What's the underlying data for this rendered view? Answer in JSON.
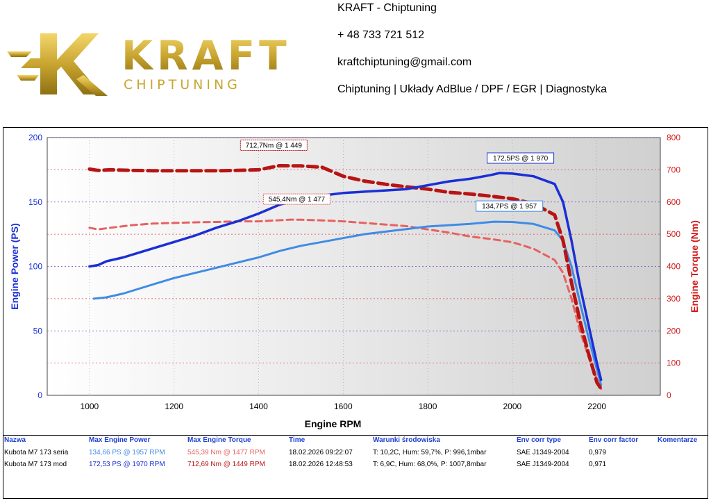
{
  "header": {
    "logo_main": "KRAFT",
    "logo_sub": "CHIPTUNING",
    "lines": [
      "KRAFT - Chiptuning",
      "+ 48 733 721 512",
      "kraftchiptuning@gmail.com",
      "Chiptuning | Układy AdBlue / DPF / EGR | Diagnostyka"
    ]
  },
  "chart_data": {
    "type": "line",
    "xlabel": "Engine RPM",
    "ylabel_left": "Engine Power (PS)",
    "ylabel_right": "Engine Torque (Nm)",
    "xlim": [
      900,
      2350
    ],
    "ylim_left": [
      0,
      200
    ],
    "ylim_right": [
      0,
      800
    ],
    "x_ticks": [
      1000,
      1200,
      1400,
      1600,
      1800,
      2000,
      2200
    ],
    "y_left_ticks": [
      0,
      50,
      100,
      150,
      200
    ],
    "y_right_ticks": [
      0,
      100,
      200,
      300,
      400,
      500,
      600,
      700,
      800
    ],
    "grid": true,
    "series": [
      {
        "axis": "left",
        "style": "solid",
        "color": "#1a2fd6",
        "x": [
          1000,
          1020,
          1040,
          1080,
          1120,
          1160,
          1200,
          1250,
          1300,
          1350,
          1400,
          1450,
          1500,
          1550,
          1600,
          1650,
          1700,
          1750,
          1800,
          1850,
          1900,
          1950,
          1970,
          2000,
          2050,
          2100,
          2120,
          2140,
          2160,
          2180,
          2200,
          2210
        ],
        "values": [
          100,
          101,
          104,
          107,
          111,
          115,
          119,
          124,
          130,
          135,
          141,
          148,
          152,
          155,
          157,
          158,
          159,
          160,
          163,
          166,
          168,
          171,
          172.5,
          172,
          170,
          164,
          150,
          120,
          85,
          55,
          25,
          12
        ]
      },
      {
        "axis": "left",
        "style": "solid",
        "color": "#3f8be6",
        "x": [
          1010,
          1040,
          1080,
          1120,
          1160,
          1200,
          1250,
          1300,
          1350,
          1400,
          1450,
          1500,
          1550,
          1600,
          1650,
          1700,
          1750,
          1800,
          1850,
          1900,
          1957,
          2000,
          2050,
          2100,
          2120,
          2140,
          2160,
          2180,
          2200,
          2210
        ],
        "values": [
          75,
          76,
          79,
          83,
          87,
          91,
          95,
          99,
          103,
          107,
          112,
          116,
          119,
          122,
          125,
          127,
          129,
          131,
          132,
          133,
          134.7,
          134.5,
          133,
          128,
          120,
          100,
          72,
          45,
          20,
          8
        ]
      },
      {
        "axis": "right",
        "style": "dashed",
        "color": "#b81414",
        "x": [
          1000,
          1020,
          1050,
          1100,
          1150,
          1200,
          1250,
          1300,
          1350,
          1400,
          1449,
          1500,
          1550,
          1600,
          1650,
          1700,
          1750,
          1800,
          1850,
          1900,
          1950,
          2000,
          2050,
          2100,
          2120,
          2140,
          2160,
          2180,
          2200,
          2210
        ],
        "values": [
          702,
          698,
          700,
          698,
          697,
          697,
          697,
          697,
          698,
          700,
          712.7,
          712,
          708,
          680,
          665,
          655,
          647,
          640,
          630,
          625,
          618,
          610,
          595,
          560,
          480,
          350,
          230,
          130,
          40,
          20
        ]
      },
      {
        "axis": "right",
        "style": "dashed",
        "color": "#e86060",
        "x": [
          1000,
          1020,
          1050,
          1100,
          1150,
          1200,
          1250,
          1300,
          1350,
          1400,
          1477,
          1500,
          1550,
          1600,
          1650,
          1700,
          1750,
          1800,
          1850,
          1900,
          1950,
          2000,
          2050,
          2100,
          2120,
          2140,
          2160,
          2180,
          2200,
          2210
        ],
        "values": [
          520,
          515,
          520,
          528,
          533,
          535,
          537,
          538,
          540,
          540,
          545.4,
          545,
          543,
          540,
          535,
          530,
          525,
          515,
          505,
          493,
          485,
          475,
          455,
          420,
          380,
          300,
          200,
          120,
          50,
          20
        ]
      }
    ],
    "annotations": [
      {
        "text": "712,7Nm @ 1 449",
        "x": 1449,
        "y": 712.7,
        "axis": "right",
        "color": "#b81414"
      },
      {
        "text": "545,4Nm @ 1 477",
        "x": 1477,
        "y": 545.4,
        "axis": "right",
        "color": "#e86060"
      },
      {
        "text": "172,5PS @ 1 970",
        "x": 1970,
        "y": 172.5,
        "axis": "left",
        "color": "#1a2fd6"
      },
      {
        "text": "134,7PS @ 1 957",
        "x": 1957,
        "y": 134.7,
        "axis": "left",
        "color": "#3f8be6"
      }
    ]
  },
  "table": {
    "headers": [
      "Nazwa",
      "Max Engine Power",
      "Max Engine Torque",
      "Time",
      "Warunki środowiska",
      "Env corr type",
      "Env corr factor",
      "Komentarze"
    ],
    "rows": [
      {
        "name": "Kubota M7 173 seria",
        "power": "134,66 PS @ 1957 RPM",
        "torque": "545,39 Nm @ 1477 RPM",
        "time": "18.02.2026 09:22:07",
        "env": "T: 10,2C, Hum: 59,7%, P: 996,1mbar",
        "corr_type": "SAE J1349-2004",
        "corr_factor": "0,979",
        "comment": "",
        "power_color": "#3f8be6",
        "torque_color": "#e86060"
      },
      {
        "name": "Kubota M7 173 mod",
        "power": "172,53 PS @ 1970 RPM",
        "torque": "712,69 Nm @ 1449 RPM",
        "time": "18.02.2026 12:48:53",
        "env": "T: 6,9C, Hum: 68,0%, P: 1007,8mbar",
        "corr_type": "SAE J1349-2004",
        "corr_factor": "0,971",
        "comment": "",
        "power_color": "#1a2fd6",
        "torque_color": "#b81414"
      }
    ]
  },
  "colors": {
    "left_axis": "#1a2fd6",
    "right_axis": "#d11a1a",
    "logo_gold": "#c9a531"
  }
}
